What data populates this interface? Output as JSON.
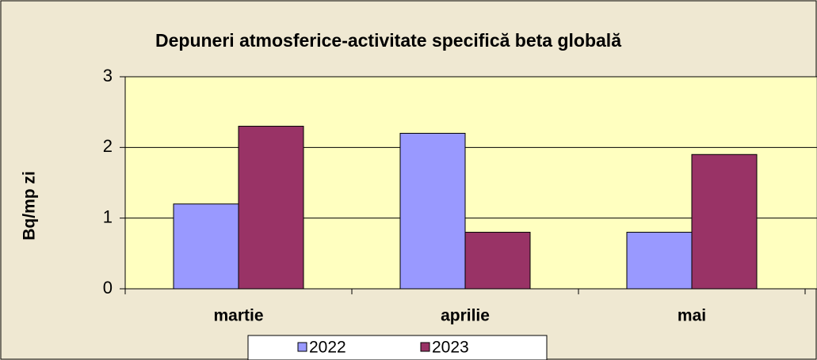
{
  "chart_data": {
    "type": "bar",
    "title": "Depuneri atmosferice-activitate specifică beta globală",
    "y_axis_label": "Bq/mp zi",
    "categories": [
      "martie",
      "aprilie",
      "mai"
    ],
    "series": [
      {
        "name": "2022",
        "color": "#9999ff",
        "values": [
          1.2,
          2.2,
          0.8
        ]
      },
      {
        "name": "2023",
        "color": "#993366",
        "values": [
          2.3,
          0.8,
          1.9
        ]
      }
    ],
    "ylim": [
      0,
      3
    ],
    "yticks": [
      0,
      1,
      2,
      3
    ],
    "grid": true,
    "legend": "bottom"
  }
}
